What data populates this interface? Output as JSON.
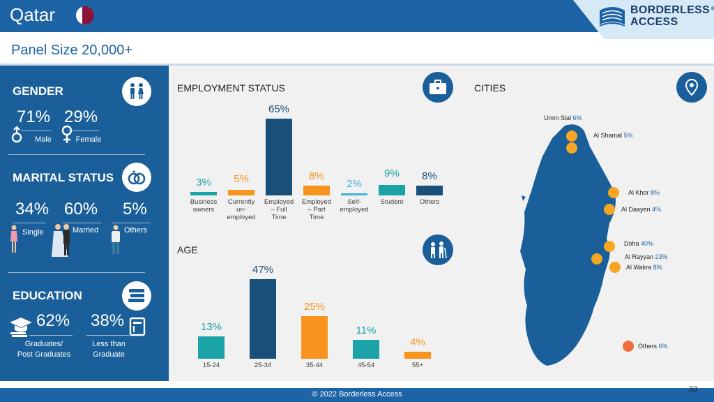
{
  "header": {
    "country": "Qatar",
    "panel_size": "Panel Size 20,000+",
    "logo_line1": "BORDERLESS",
    "logo_line2": "ACCESS",
    "logo_reg": "®"
  },
  "gender": {
    "title": "GENDER",
    "male_pct": "71%",
    "male_label": "Male",
    "female_pct": "29%",
    "female_label": "Female"
  },
  "marital": {
    "title": "MARITAL STATUS",
    "single_pct": "34%",
    "single_label": "Single",
    "married_pct": "60%",
    "married_label": "Married",
    "others_pct": "5%",
    "others_label": "Others"
  },
  "education": {
    "title": "EDUCATION",
    "grad_pct": "62%",
    "grad_label_1": "Graduates/",
    "grad_label_2": "Post Graduates",
    "less_pct": "38%",
    "less_label_1": "Less than",
    "less_label_2": "Graduate"
  },
  "employment": {
    "title": "EMPLOYMENT STATUS",
    "categories": [
      [
        "Business",
        "owners"
      ],
      [
        "Currently",
        "un-",
        "employed"
      ],
      [
        "Employed",
        "– Full",
        "Time"
      ],
      [
        "Employed",
        "– Part",
        "Time"
      ],
      [
        "Self-",
        "employed"
      ],
      [
        "Student"
      ],
      [
        "Others"
      ]
    ],
    "labels": [
      "3%",
      "5%",
      "65%",
      "8%",
      "2%",
      "9%",
      "8%"
    ]
  },
  "age": {
    "title": "AGE",
    "categories": [
      "15-24",
      "25-34",
      "35-44",
      "45-54",
      "55+"
    ],
    "labels": [
      "13%",
      "47%",
      "25%",
      "11%",
      "4%"
    ]
  },
  "cities": {
    "title": "CITIES",
    "items": [
      {
        "name": "Umm Slal",
        "pct": "6%"
      },
      {
        "name": "Al Shamal",
        "pct": "5%"
      },
      {
        "name": "Al Khor",
        "pct": "8%"
      },
      {
        "name": "Al Daayen",
        "pct": "4%"
      },
      {
        "name": "Doha",
        "pct": "40%"
      },
      {
        "name": "Al Rayyan",
        "pct": "23%"
      },
      {
        "name": "Al Wakra",
        "pct": "8%"
      },
      {
        "name": "Others",
        "pct": "6%"
      }
    ]
  },
  "footer": {
    "copyright": "© 2022 Borderless Access",
    "page": "33"
  },
  "chart_data": [
    {
      "type": "bar",
      "title": "EMPLOYMENT STATUS",
      "categories": [
        "Business owners",
        "Currently un-employed",
        "Employed – Full Time",
        "Employed – Part Time",
        "Self-employed",
        "Student",
        "Others"
      ],
      "values": [
        3,
        5,
        65,
        8,
        2,
        9,
        8
      ],
      "colors": [
        "#1ba3a8",
        "#f7941d",
        "#1a4f7a",
        "#f7941d",
        "#3fb2d6",
        "#1ba3a8",
        "#1a4f7a"
      ],
      "ylim": [
        0,
        65
      ]
    },
    {
      "type": "bar",
      "title": "AGE",
      "categories": [
        "15-24",
        "25-34",
        "35-44",
        "45-54",
        "55+"
      ],
      "values": [
        13,
        47,
        25,
        11,
        4
      ],
      "colors": [
        "#1ba3a8",
        "#1a4f7a",
        "#f7941d",
        "#1ba3a8",
        "#f7941d"
      ],
      "ylim": [
        0,
        47
      ]
    }
  ],
  "colors": {
    "brand_blue": "#1d64a6",
    "panel_blue": "#1a5f99",
    "orange": "#f7941d",
    "teal": "#1ba3a8",
    "navy": "#1a4f7a"
  }
}
